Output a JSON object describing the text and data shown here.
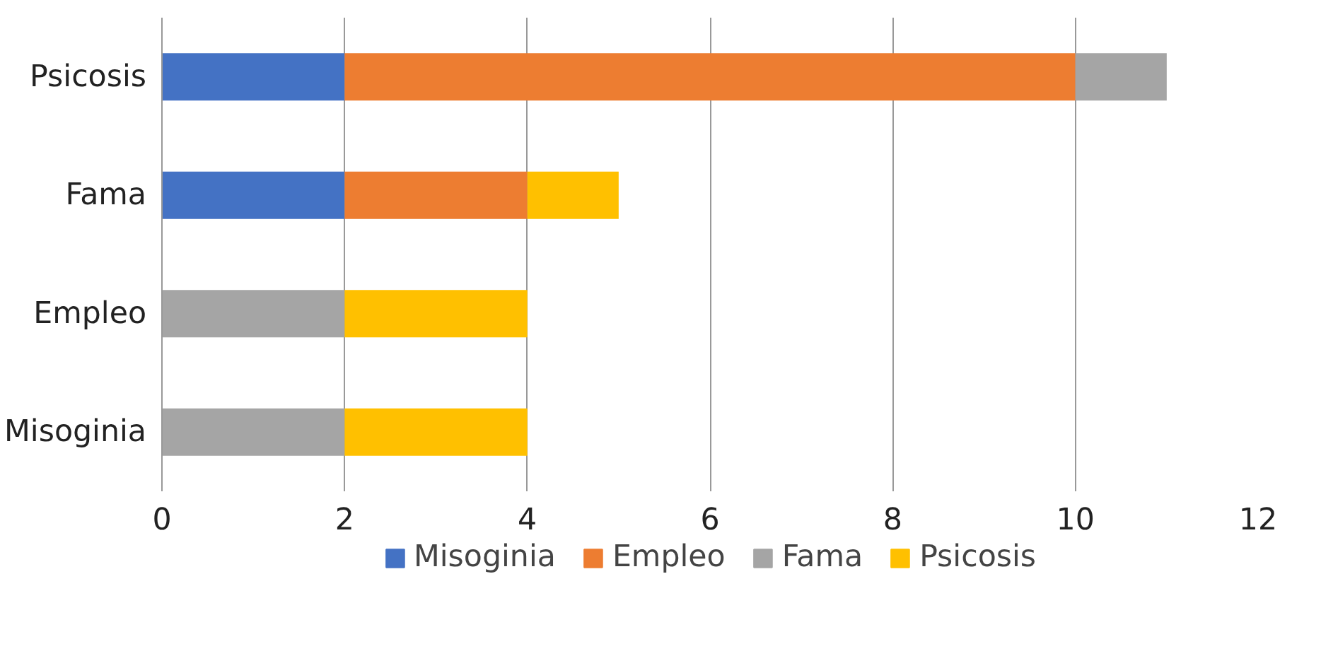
{
  "chart_data": {
    "type": "bar",
    "orientation": "horizontal",
    "stacked": true,
    "categories": [
      "Psicosis",
      "Fama",
      "Empleo",
      "Misoginia"
    ],
    "series": [
      {
        "name": "Misoginia",
        "color": "#4472c4",
        "values": [
          2,
          2,
          null,
          null
        ]
      },
      {
        "name": "Empleo",
        "color": "#ed7d31",
        "values": [
          8,
          2,
          null,
          null
        ]
      },
      {
        "name": "Fama",
        "color": "#a5a5a5",
        "values": [
          1,
          null,
          2,
          2
        ]
      },
      {
        "name": "Psicosis",
        "color": "#ffc000",
        "values": [
          null,
          1,
          2,
          2
        ]
      }
    ],
    "xlim": [
      0,
      12
    ],
    "xticks": [
      0,
      2,
      4,
      6,
      8,
      10,
      12
    ],
    "grid": "x",
    "legend": "bottom"
  }
}
